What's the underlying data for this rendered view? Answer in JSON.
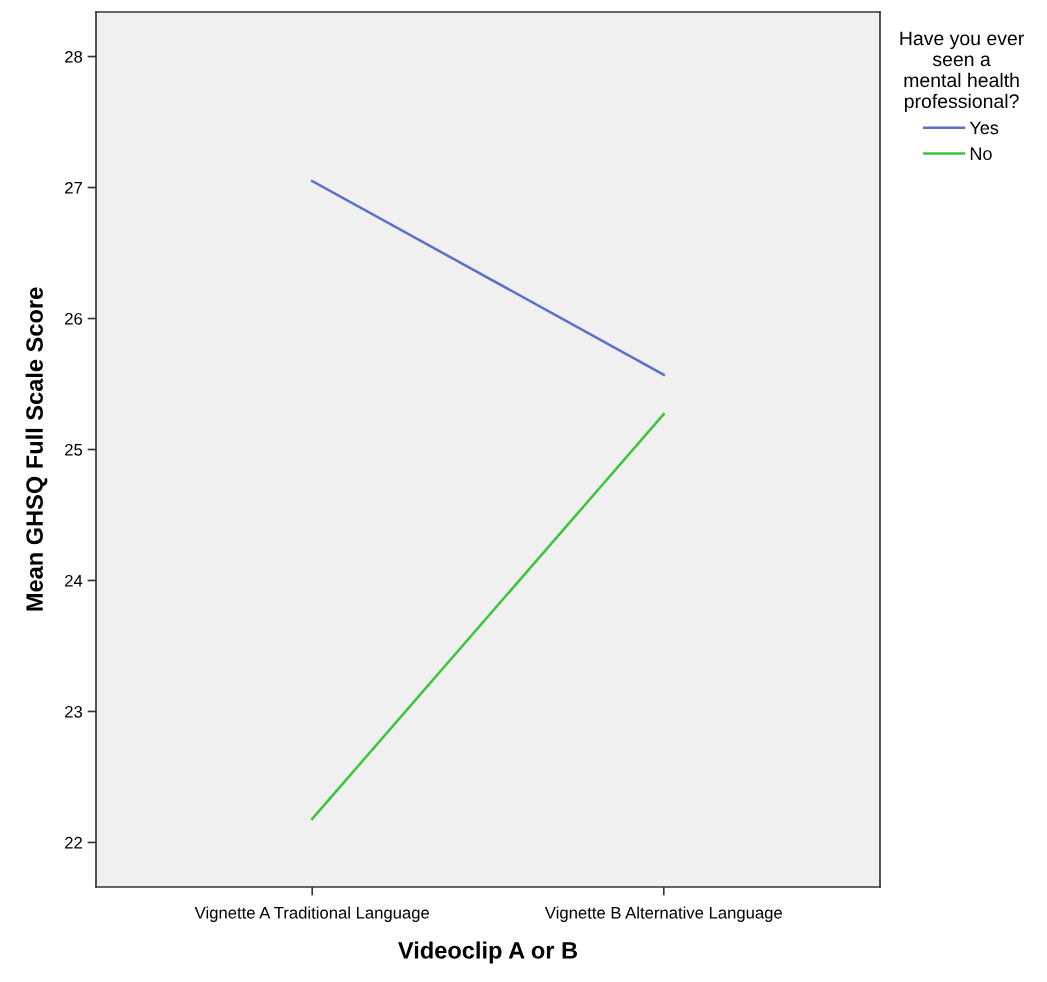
{
  "chart_data": {
    "type": "line",
    "xlabel": "Videoclip A or B",
    "ylabel": "Mean GHSQ Full Scale Score",
    "legend_title": "Have you ever\nseen a\nmental health\nprofessional?",
    "categories": [
      "Vignette A Traditional Language",
      "Vignette B Alternative Language"
    ],
    "series": [
      {
        "name": "Yes",
        "color": "#5b6fc8",
        "values": [
          27.05,
          25.57
        ]
      },
      {
        "name": "No",
        "color": "#3cc43c",
        "values": [
          22.18,
          25.27
        ]
      }
    ],
    "ylim": [
      21.66,
      28.34
    ],
    "yticks": [
      22,
      23,
      24,
      25,
      26,
      27,
      28
    ],
    "grid": false,
    "legend": "top right",
    "marker": "none",
    "line_style": "solid"
  }
}
